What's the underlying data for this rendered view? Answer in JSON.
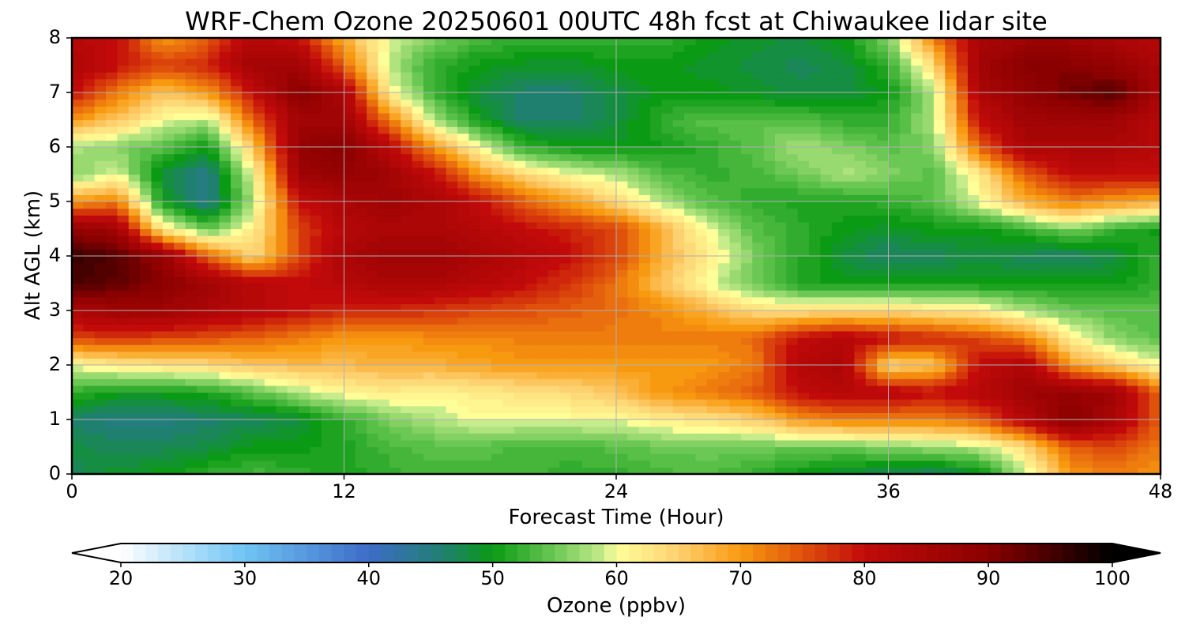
{
  "chart_data": {
    "type": "heatmap",
    "title": "WRF-Chem Ozone  20250601 00UTC 48h fcst at Chiwaukee lidar site",
    "xlabel": "Forecast Time (Hour)",
    "ylabel": "Alt AGL (km)",
    "xlim": [
      0,
      48
    ],
    "ylim": [
      0,
      8
    ],
    "xticks": [
      0,
      12,
      24,
      36,
      48
    ],
    "yticks": [
      0,
      1,
      2,
      3,
      4,
      5,
      6,
      7,
      8
    ],
    "grid": true,
    "x": [
      0,
      2,
      4,
      6,
      8,
      10,
      12,
      14,
      16,
      18,
      20,
      22,
      24,
      26,
      28,
      30,
      32,
      34,
      36,
      38,
      40,
      42,
      44,
      46,
      48
    ],
    "y": [
      0,
      0.5,
      1,
      1.5,
      2,
      2.5,
      3,
      3.5,
      4,
      4.5,
      5,
      5.5,
      6,
      6.5,
      7,
      7.5,
      8
    ],
    "z": [
      [
        47,
        49,
        50,
        52,
        53,
        52,
        51,
        52,
        53,
        53,
        53,
        52,
        52,
        53,
        54,
        52,
        50,
        48,
        47,
        46,
        49,
        58,
        70,
        72,
        70
      ],
      [
        48,
        47,
        47,
        48,
        50,
        50,
        51,
        53,
        54,
        54,
        53,
        53,
        54,
        55,
        55,
        55,
        55,
        55,
        56,
        57,
        58,
        64,
        74,
        76,
        72
      ],
      [
        46,
        45,
        45,
        46,
        47,
        48,
        52,
        56,
        58,
        60,
        60,
        60,
        60,
        62,
        63,
        65,
        70,
        72,
        72,
        72,
        74,
        82,
        90,
        84,
        74
      ],
      [
        52,
        50,
        50,
        51,
        54,
        58,
        61,
        62,
        61,
        62,
        63,
        64,
        66,
        70,
        72,
        74,
        80,
        82,
        82,
        80,
        82,
        86,
        88,
        86,
        73
      ],
      [
        60,
        62,
        63,
        64,
        66,
        67,
        67,
        68,
        68,
        69,
        70,
        70,
        70,
        70,
        70,
        72,
        82,
        84,
        64,
        66,
        80,
        84,
        70,
        65,
        60
      ],
      [
        76,
        77,
        76,
        75,
        74,
        72,
        70,
        70,
        71,
        71,
        72,
        72,
        72,
        72,
        72,
        73,
        80,
        82,
        80,
        78,
        76,
        72,
        62,
        56,
        54
      ],
      [
        84,
        86,
        86,
        84,
        82,
        80,
        78,
        78,
        77,
        76,
        75,
        74,
        73,
        71,
        68,
        64,
        63,
        64,
        64,
        63,
        62,
        58,
        55,
        54,
        54
      ],
      [
        95,
        93,
        90,
        86,
        82,
        80,
        82,
        84,
        84,
        82,
        80,
        77,
        73,
        66,
        60,
        55,
        51,
        50,
        50,
        50,
        50,
        50,
        50,
        50,
        52
      ],
      [
        96,
        94,
        88,
        74,
        64,
        76,
        84,
        86,
        86,
        84,
        82,
        80,
        76,
        68,
        62,
        56,
        52,
        48,
        46,
        47,
        48,
        47,
        46,
        48,
        52
      ],
      [
        88,
        86,
        62,
        54,
        62,
        76,
        82,
        84,
        84,
        82,
        80,
        78,
        76,
        68,
        60,
        54,
        52,
        50,
        49,
        50,
        50,
        52,
        56,
        52,
        50
      ],
      [
        70,
        72,
        50,
        44,
        58,
        80,
        84,
        86,
        84,
        80,
        74,
        70,
        64,
        58,
        54,
        52,
        51,
        51,
        52,
        54,
        60,
        68,
        72,
        70,
        68
      ],
      [
        56,
        60,
        48,
        44,
        60,
        86,
        88,
        86,
        80,
        70,
        64,
        60,
        58,
        54,
        52,
        53,
        55,
        58,
        56,
        54,
        62,
        74,
        80,
        80,
        80
      ],
      [
        58,
        56,
        54,
        50,
        66,
        88,
        90,
        82,
        70,
        60,
        52,
        50,
        50,
        50,
        52,
        54,
        58,
        56,
        54,
        56,
        74,
        84,
        84,
        84,
        82
      ],
      [
        70,
        66,
        60,
        58,
        74,
        86,
        86,
        72,
        58,
        50,
        46,
        46,
        48,
        52,
        54,
        54,
        54,
        52,
        52,
        58,
        80,
        86,
        86,
        86,
        82
      ],
      [
        80,
        72,
        66,
        70,
        80,
        90,
        84,
        62,
        52,
        48,
        46,
        46,
        48,
        50,
        50,
        49,
        48,
        48,
        50,
        58,
        84,
        88,
        92,
        94,
        84
      ],
      [
        84,
        80,
        76,
        78,
        86,
        86,
        74,
        58,
        52,
        50,
        49,
        49,
        50,
        50,
        49,
        48,
        47,
        48,
        52,
        64,
        86,
        90,
        90,
        88,
        84
      ],
      [
        82,
        80,
        70,
        74,
        82,
        80,
        68,
        60,
        56,
        53,
        52,
        52,
        52,
        52,
        50,
        49,
        48,
        50,
        56,
        72,
        84,
        86,
        86,
        84,
        82
      ]
    ],
    "colorbar": {
      "label": "Ozone  (ppbv)",
      "min": 20,
      "max": 100,
      "ticks": [
        "20",
        "30",
        "40",
        "50",
        "60",
        "70",
        "80",
        "90",
        "100"
      ],
      "extend": "both"
    },
    "colormap": [
      [
        20,
        "#ffffff"
      ],
      [
        30,
        "#6fc4f4"
      ],
      [
        40,
        "#3d6cc8"
      ],
      [
        46,
        "#208070"
      ],
      [
        50,
        "#0a9a14"
      ],
      [
        55,
        "#6cc854"
      ],
      [
        59,
        "#c6ec8c"
      ],
      [
        60,
        "#ffff9a"
      ],
      [
        65,
        "#fdd070"
      ],
      [
        70,
        "#f89a10"
      ],
      [
        75,
        "#e0520c"
      ],
      [
        80,
        "#c20a0a"
      ],
      [
        90,
        "#8a0000"
      ],
      [
        100,
        "#000000"
      ]
    ]
  }
}
